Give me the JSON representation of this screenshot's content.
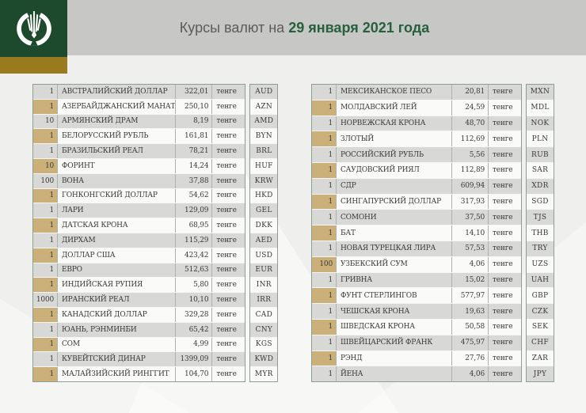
{
  "header": {
    "title_prefix": "Курсы валют на ",
    "title_date": "29 января 2021 года",
    "logo_icon": "national-bank-kazakhstan-emblem"
  },
  "colors": {
    "logo_green": "#1d4a2d",
    "logo_gold": "#9a7a1f",
    "header_grey": "#c7c7c5",
    "title_date_green": "#26603d",
    "row_grey": "#d8d8d6",
    "row_white": "#fafaf8",
    "qty_tan": "#cbb179",
    "table_border": "#8d9d90"
  },
  "unit_label": "тенге",
  "tables": [
    {
      "rows": [
        {
          "qty": "1",
          "name": "АВСТРАЛИЙСКИЙ ДОЛЛАР",
          "rate": "322,01",
          "code": "AUD"
        },
        {
          "qty": "1",
          "name": "АЗЕРБАЙДЖАНСКИЙ МАНАТ",
          "rate": "250,10",
          "code": "AZN"
        },
        {
          "qty": "10",
          "name": "АРМЯНСКИЙ ДРАМ",
          "rate": "8,19",
          "code": "AMD"
        },
        {
          "qty": "1",
          "name": "БЕЛОРУССКИЙ РУБЛЬ",
          "rate": "161,81",
          "code": "BYN"
        },
        {
          "qty": "1",
          "name": "БРАЗИЛЬСКИЙ РЕАЛ",
          "rate": "78,21",
          "code": "BRL"
        },
        {
          "qty": "10",
          "name": "ФОРИНТ",
          "rate": "14,24",
          "code": "HUF"
        },
        {
          "qty": "100",
          "name": "ВОНА",
          "rate": "37,88",
          "code": "KRW"
        },
        {
          "qty": "1",
          "name": "ГОНКОНГСКИЙ ДОЛЛАР",
          "rate": "54,62",
          "code": "HKD"
        },
        {
          "qty": "1",
          "name": "ЛАРИ",
          "rate": "129,09",
          "code": "GEL"
        },
        {
          "qty": "1",
          "name": "ДАТСКАЯ КРОНА",
          "rate": "68,95",
          "code": "DKK"
        },
        {
          "qty": "1",
          "name": "ДИРХАМ",
          "rate": "115,29",
          "code": "AED"
        },
        {
          "qty": "1",
          "name": "ДОЛЛАР США",
          "rate": "423,42",
          "code": "USD"
        },
        {
          "qty": "1",
          "name": "ЕВРО",
          "rate": "512,63",
          "code": "EUR"
        },
        {
          "qty": "1",
          "name": "ИНДИЙСКАЯ РУПИЯ",
          "rate": "5,80",
          "code": "INR"
        },
        {
          "qty": "1000",
          "name": "ИРАНСКИЙ РЕАЛ",
          "rate": "10,10",
          "code": "IRR"
        },
        {
          "qty": "1",
          "name": "КАНАДСКИЙ ДОЛЛАР",
          "rate": "329,28",
          "code": "CAD"
        },
        {
          "qty": "1",
          "name": "ЮАНЬ, РЭНМИНБИ",
          "rate": "65,42",
          "code": "CNY"
        },
        {
          "qty": "1",
          "name": "СОМ",
          "rate": "4,99",
          "code": "KGS"
        },
        {
          "qty": "1",
          "name": "КУВЕЙТСКИЙ ДИНАР",
          "rate": "1399,09",
          "code": "KWD"
        },
        {
          "qty": "1",
          "name": "МАЛАЙЗИЙСКИЙ РИНГГИТ",
          "rate": "104,70",
          "code": "MYR"
        }
      ]
    },
    {
      "rows": [
        {
          "qty": "1",
          "name": "МЕКСИКАНСКОЕ ПЕСО",
          "rate": "20,81",
          "code": "MXN"
        },
        {
          "qty": "1",
          "name": "МОЛДАВСКИЙ ЛЕЙ",
          "rate": "24,59",
          "code": "MDL"
        },
        {
          "qty": "1",
          "name": "НОРВЕЖСКАЯ КРОНА",
          "rate": "48,70",
          "code": "NOK"
        },
        {
          "qty": "1",
          "name": "ЗЛОТЫЙ",
          "rate": "112,69",
          "code": "PLN"
        },
        {
          "qty": "1",
          "name": "РОССИЙСКИЙ РУБЛЬ",
          "rate": "5,56",
          "code": "RUB"
        },
        {
          "qty": "1",
          "name": "САУДОВСКИЙ РИЯЛ",
          "rate": "112,89",
          "code": "SAR"
        },
        {
          "qty": "1",
          "name": "СДР",
          "rate": "609,94",
          "code": "XDR"
        },
        {
          "qty": "1",
          "name": "СИНГАПУРСКИЙ ДОЛЛАР",
          "rate": "317,93",
          "code": "SGD"
        },
        {
          "qty": "1",
          "name": "СОМОНИ",
          "rate": "37,50",
          "code": "TJS"
        },
        {
          "qty": "1",
          "name": "БАТ",
          "rate": "14,10",
          "code": "THB"
        },
        {
          "qty": "1",
          "name": "НОВАЯ ТУРЕЦКАЯ ЛИРА",
          "rate": "57,53",
          "code": "TRY"
        },
        {
          "qty": "100",
          "name": "УЗБЕКСКИЙ СУМ",
          "rate": "4,06",
          "code": "UZS"
        },
        {
          "qty": "1",
          "name": "ГРИВНА",
          "rate": "15,02",
          "code": "UAH"
        },
        {
          "qty": "1",
          "name": "ФУНТ СТЕРЛИНГОВ",
          "rate": "577,97",
          "code": "GBP"
        },
        {
          "qty": "1",
          "name": "ЧЕШСКАЯ КРОНА",
          "rate": "19,63",
          "code": "CZK"
        },
        {
          "qty": "1",
          "name": "ШВЕДСКАЯ КРОНА",
          "rate": "50,58",
          "code": "SEK"
        },
        {
          "qty": "1",
          "name": "ШВЕЙЦАРСКИЙ ФРАНК",
          "rate": "475,97",
          "code": "CHF"
        },
        {
          "qty": "1",
          "name": "РЭНД",
          "rate": "27,76",
          "code": "ZAR"
        },
        {
          "qty": "1",
          "name": "ЙЕНА",
          "rate": "4,06",
          "code": "JPY"
        }
      ]
    }
  ]
}
